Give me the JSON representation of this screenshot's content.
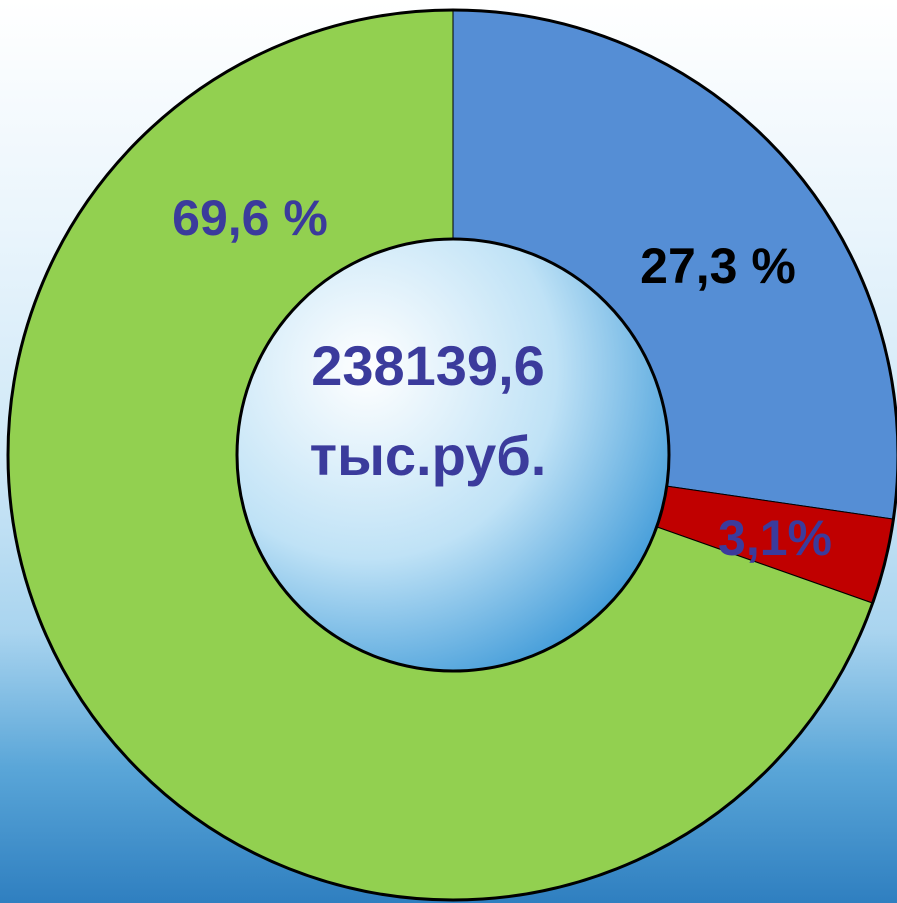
{
  "chart_data": {
    "type": "donut",
    "values": [
      27.3,
      3.1,
      69.6
    ],
    "value_labels": [
      "27,3 %",
      "3,1%",
      "69,6 %"
    ],
    "colors": [
      "#558ed5",
      "#c00000",
      "#92d050"
    ],
    "label_colors": [
      "#000000",
      "#3b3b9c",
      "#3b3b9c"
    ],
    "center_text": [
      "238139,6",
      "тыс.руб."
    ]
  }
}
